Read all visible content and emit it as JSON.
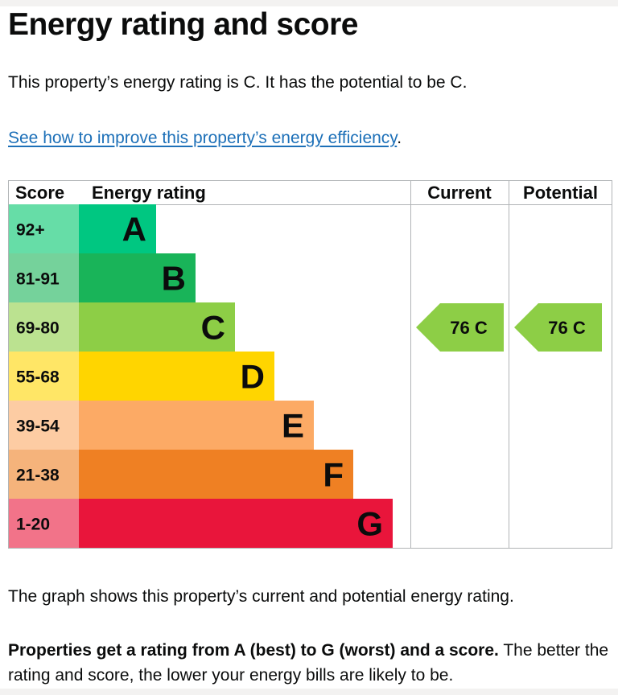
{
  "heading": "Energy rating and score",
  "intro": "This property’s energy rating is C. It has the potential to be C.",
  "improve_link": "See how to improve this property’s energy efficiency",
  "improve_period": ".",
  "graph": {
    "headers": {
      "score": "Score",
      "rating": "Energy rating",
      "current": "Current",
      "potential": "Potential"
    },
    "bands": [
      {
        "letter": "A",
        "score": "92+",
        "color": "#00c781",
        "score_bg": "#66dda7"
      },
      {
        "letter": "B",
        "score": "81-91",
        "color": "#19b459",
        "score_bg": "#75d29b"
      },
      {
        "letter": "C",
        "score": "69-80",
        "color": "#8dce46",
        "score_bg": "#bbe290"
      },
      {
        "letter": "D",
        "score": "55-68",
        "color": "#ffd500",
        "score_bg": "#ffe666"
      },
      {
        "letter": "E",
        "score": "39-54",
        "color": "#fcaa65",
        "score_bg": "#fdcca3"
      },
      {
        "letter": "F",
        "score": "21-38",
        "color": "#ef8023",
        "score_bg": "#f5b37b"
      },
      {
        "letter": "G",
        "score": "1-20",
        "color": "#e9153b",
        "score_bg": "#f27389"
      }
    ],
    "current": {
      "label": "76 C",
      "band": "C",
      "color": "#8dce46"
    },
    "potential": {
      "label": "76 C",
      "band": "C",
      "color": "#8dce46"
    }
  },
  "caption": "The graph shows this property’s current and potential energy rating.",
  "explain_bold": "Properties get a rating from A (best) to G (worst) and a score.",
  "explain_rest": " The better the rating and score, the lower your energy bills are likely to be."
}
